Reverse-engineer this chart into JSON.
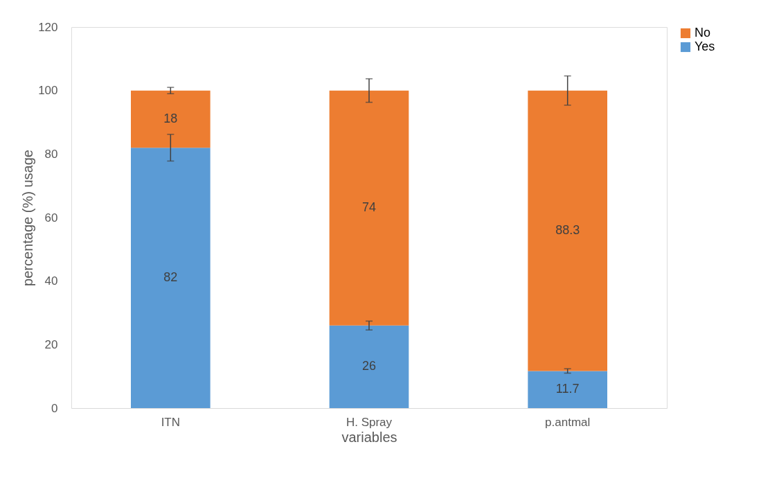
{
  "chart_data": {
    "type": "bar",
    "xlabel": "variables",
    "ylabel": "percentage (%) usage",
    "categories": [
      "ITN",
      "H. Spray",
      "p.antmal"
    ],
    "stacked": true,
    "data_labels": true,
    "legend": "right",
    "grid": false,
    "ylim": [
      0,
      120
    ],
    "yticks": [
      0,
      20,
      40,
      60,
      80,
      100,
      120
    ],
    "series": [
      {
        "name": "Yes",
        "color": "#5b9bd5",
        "values": [
          82,
          26,
          11.7
        ],
        "errors": [
          4.2,
          1.4,
          0.7
        ]
      },
      {
        "name": "No",
        "color": "#ed7d31",
        "values": [
          18,
          74,
          88.3
        ],
        "errors": [
          1,
          3.7,
          4.6
        ]
      }
    ]
  }
}
